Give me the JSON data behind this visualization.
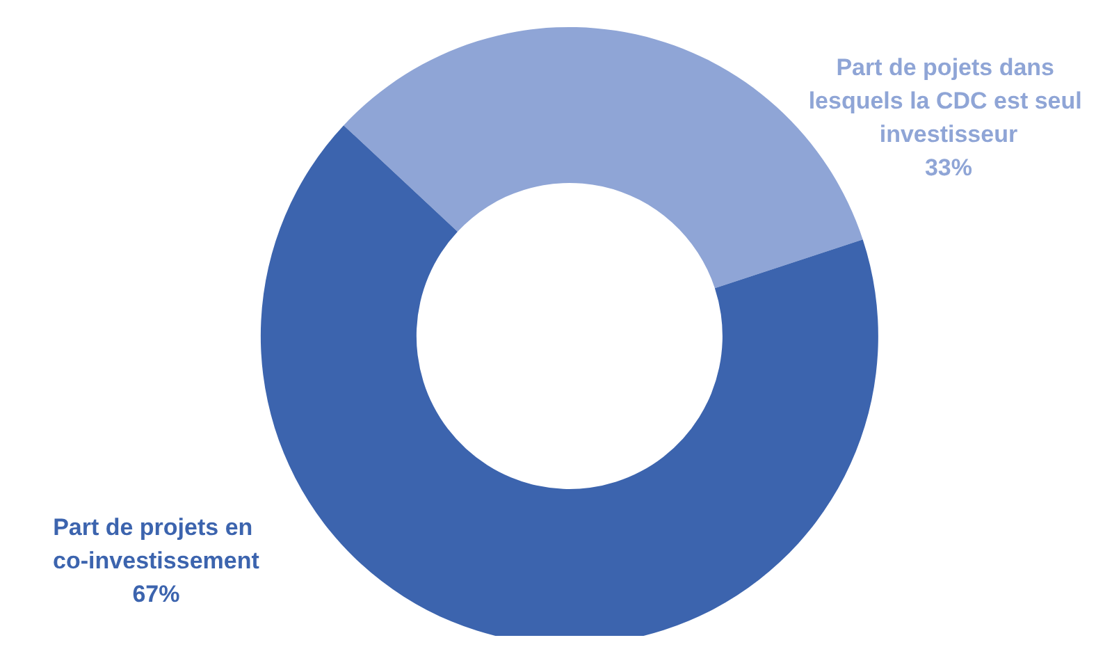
{
  "chart_data": {
    "type": "donut",
    "categories": [
      "Part de pojets dans lesquels la CDC est seul investisseur",
      "Part de projets en co-investissement"
    ],
    "values": [
      33,
      67
    ],
    "value_labels": [
      "33%",
      "67%"
    ],
    "colors": [
      "#8fa5d6",
      "#3c64ae"
    ],
    "legend": false
  }
}
